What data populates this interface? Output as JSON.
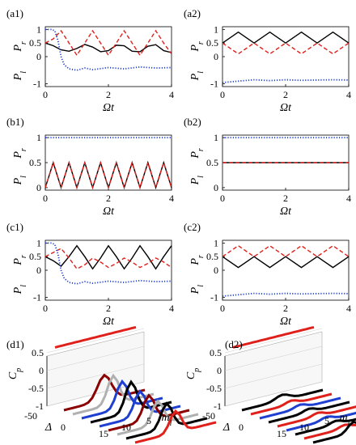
{
  "chart_data": [
    {
      "type": "line",
      "panel_label": "(a1)",
      "xlabel": "Ωt",
      "ylabels": [
        "P_r",
        "P_l"
      ],
      "xlim": [
        0,
        4
      ],
      "ylim": [
        -1.1,
        1.1
      ],
      "xticks": [
        "0",
        "2",
        "4"
      ],
      "yticks": [
        "-1",
        "0",
        "0.5",
        "1"
      ],
      "series": [
        {
          "color": "#000000",
          "style": "solid",
          "x": [
            0,
            0.25,
            0.5,
            0.75,
            1,
            1.25,
            1.5,
            1.75,
            2,
            2.25,
            2.5,
            2.75,
            3,
            3.25,
            3.5,
            3.75,
            4
          ],
          "y": [
            0.5,
            0.4,
            0.25,
            0.2,
            0.3,
            0.45,
            0.35,
            0.18,
            0.22,
            0.42,
            0.4,
            0.2,
            0.18,
            0.38,
            0.44,
            0.22,
            0.15
          ]
        },
        {
          "color": "#e0201b",
          "style": "dashed",
          "x": [
            0,
            0.25,
            0.5,
            0.75,
            1,
            1.25,
            1.5,
            1.75,
            2,
            2.25,
            2.5,
            2.75,
            3,
            3.25,
            3.5,
            3.75,
            4
          ],
          "y": [
            0.5,
            0.65,
            0.95,
            0.5,
            0.05,
            0.5,
            0.95,
            0.5,
            0.05,
            0.5,
            0.95,
            0.5,
            0.05,
            0.5,
            0.95,
            0.5,
            0.1
          ]
        },
        {
          "color": "#1f3fd1",
          "style": "dotted",
          "x": [
            0,
            0.2,
            0.3,
            0.4,
            0.5,
            0.6,
            0.75,
            1,
            1.25,
            1.5,
            2,
            2.5,
            3,
            3.5,
            4
          ],
          "y": [
            1,
            1,
            0.95,
            0.6,
            0,
            -0.3,
            -0.45,
            -0.5,
            -0.42,
            -0.48,
            -0.4,
            -0.45,
            -0.38,
            -0.42,
            -0.4
          ]
        }
      ]
    },
    {
      "type": "line",
      "panel_label": "(a2)",
      "xlabel": "Ωt",
      "ylabels": [
        "P_r",
        "P_l"
      ],
      "xlim": [
        0,
        4
      ],
      "ylim": [
        -1.1,
        1.1
      ],
      "xticks": [
        "0",
        "2",
        "4"
      ],
      "yticks": [
        "-1",
        "0",
        "0.5",
        "1"
      ],
      "series": [
        {
          "color": "#000000",
          "style": "solid",
          "x": [
            0,
            0.5,
            1,
            1.5,
            2,
            2.5,
            3,
            3.5,
            4
          ],
          "y": [
            0.5,
            0.9,
            0.5,
            0.9,
            0.5,
            0.9,
            0.5,
            0.9,
            0.5
          ]
        },
        {
          "color": "#e0201b",
          "style": "dashed",
          "x": [
            0,
            0.5,
            1,
            1.5,
            2,
            2.5,
            3,
            3.5,
            4
          ],
          "y": [
            0.5,
            0.1,
            0.5,
            0.1,
            0.5,
            0.1,
            0.5,
            0.1,
            0.5
          ]
        },
        {
          "color": "#1f3fd1",
          "style": "dotted",
          "x": [
            0,
            0.5,
            1,
            1.5,
            2,
            2.5,
            3,
            3.5,
            4
          ],
          "y": [
            -0.95,
            -0.9,
            -0.85,
            -0.88,
            -0.85,
            -0.87,
            -0.86,
            -0.85,
            -0.86
          ]
        }
      ]
    },
    {
      "type": "line",
      "panel_label": "(b1)",
      "xlabel": "Ωt",
      "ylabels": [
        "P_r",
        "P_l"
      ],
      "xlim": [
        0,
        4
      ],
      "ylim": [
        -0.05,
        1.05
      ],
      "xticks": [
        "0",
        "2",
        "4"
      ],
      "yticks": [
        "0",
        "0.5",
        "1"
      ],
      "series": [
        {
          "color": "#000000",
          "style": "solid",
          "x": [
            0,
            0.25,
            0.5,
            0.75,
            1,
            1.25,
            1.5,
            1.75,
            2,
            2.25,
            2.5,
            2.75,
            3,
            3.25,
            3.5,
            3.75,
            4
          ],
          "y": [
            0,
            0.5,
            0,
            0.5,
            0,
            0.5,
            0,
            0.5,
            0,
            0.5,
            0,
            0.5,
            0,
            0.5,
            0,
            0.5,
            0
          ]
        },
        {
          "color": "#e0201b",
          "style": "dashed",
          "x": [
            0,
            0.25,
            0.5,
            0.75,
            1,
            1.25,
            1.5,
            1.75,
            2,
            2.25,
            2.5,
            2.75,
            3,
            3.25,
            3.5,
            3.75,
            4
          ],
          "y": [
            0,
            0.5,
            0,
            0.5,
            0,
            0.5,
            0,
            0.5,
            0,
            0.5,
            0,
            0.5,
            0,
            0.5,
            0,
            0.5,
            0
          ]
        },
        {
          "color": "#1f3fd1",
          "style": "dotted",
          "x": [
            0,
            4
          ],
          "y": [
            1,
            1
          ]
        }
      ]
    },
    {
      "type": "line",
      "panel_label": "(b2)",
      "xlabel": "Ωt",
      "ylabels": [
        "P_r",
        "P_l"
      ],
      "xlim": [
        0,
        4
      ],
      "ylim": [
        -0.05,
        1.05
      ],
      "xticks": [
        "0",
        "2",
        "4"
      ],
      "yticks": [
        "0",
        "0.5",
        "1"
      ],
      "series": [
        {
          "color": "#000000",
          "style": "solid",
          "x": [
            0,
            4
          ],
          "y": [
            0.5,
            0.5
          ]
        },
        {
          "color": "#e0201b",
          "style": "dashed",
          "x": [
            0,
            4
          ],
          "y": [
            0.5,
            0.5
          ]
        },
        {
          "color": "#1f3fd1",
          "style": "dotted",
          "x": [
            0,
            4
          ],
          "y": [
            1,
            1
          ]
        }
      ]
    },
    {
      "type": "line",
      "panel_label": "(c1)",
      "xlabel": "Ωt",
      "ylabels": [
        "P_r",
        "P_l"
      ],
      "xlim": [
        0,
        4
      ],
      "ylim": [
        -1.1,
        1.1
      ],
      "xticks": [
        "0",
        "2",
        "4"
      ],
      "yticks": [
        "-1",
        "0",
        "0.5",
        "1"
      ],
      "series": [
        {
          "color": "#000000",
          "style": "solid",
          "x": [
            0,
            0.25,
            0.5,
            0.75,
            1,
            1.25,
            1.5,
            1.75,
            2,
            2.25,
            2.5,
            2.75,
            3,
            3.25,
            3.5,
            3.75,
            4
          ],
          "y": [
            0.5,
            0.35,
            0.15,
            0.5,
            0.9,
            0.5,
            0.05,
            0.45,
            0.9,
            0.5,
            0.05,
            0.45,
            0.9,
            0.5,
            0.05,
            0.5,
            0.9
          ]
        },
        {
          "color": "#e0201b",
          "style": "dashed",
          "x": [
            0,
            0.25,
            0.5,
            0.75,
            1,
            1.25,
            1.5,
            1.75,
            2,
            2.25,
            2.5,
            2.75,
            3,
            3.25,
            3.5,
            3.75,
            4
          ],
          "y": [
            0.5,
            0.65,
            0.8,
            0.45,
            0.05,
            0.2,
            0.45,
            0.3,
            0.1,
            0.25,
            0.45,
            0.3,
            0.1,
            0.25,
            0.45,
            0.3,
            0.1
          ]
        },
        {
          "color": "#1f3fd1",
          "style": "dotted",
          "x": [
            0,
            0.2,
            0.3,
            0.4,
            0.5,
            0.6,
            0.75,
            1,
            1.25,
            1.5,
            2,
            2.5,
            3,
            3.5,
            4
          ],
          "y": [
            1,
            1,
            0.95,
            0.6,
            0,
            -0.3,
            -0.45,
            -0.5,
            -0.42,
            -0.48,
            -0.4,
            -0.45,
            -0.38,
            -0.42,
            -0.4
          ]
        }
      ]
    },
    {
      "type": "line",
      "panel_label": "(c2)",
      "xlabel": "Ωt",
      "ylabels": [
        "P_r",
        "P_l"
      ],
      "xlim": [
        0,
        4
      ],
      "ylim": [
        -1.1,
        1.1
      ],
      "xticks": [
        "0",
        "2",
        "4"
      ],
      "yticks": [
        "-1",
        "0",
        "0.5",
        "1"
      ],
      "series": [
        {
          "color": "#000000",
          "style": "solid",
          "x": [
            0,
            0.5,
            1,
            1.5,
            2,
            2.5,
            3,
            3.5,
            4
          ],
          "y": [
            0.5,
            0.1,
            0.5,
            0.1,
            0.5,
            0.1,
            0.5,
            0.1,
            0.5
          ]
        },
        {
          "color": "#e0201b",
          "style": "dashed",
          "x": [
            0,
            0.5,
            1,
            1.5,
            2,
            2.5,
            3,
            3.5,
            4
          ],
          "y": [
            0.5,
            0.9,
            0.5,
            0.9,
            0.5,
            0.9,
            0.5,
            0.9,
            0.5
          ]
        },
        {
          "color": "#1f3fd1",
          "style": "dotted",
          "x": [
            0,
            0.5,
            1,
            1.5,
            2,
            2.5,
            3,
            3.5,
            4
          ],
          "y": [
            -0.95,
            -0.9,
            -0.85,
            -0.88,
            -0.85,
            -0.87,
            -0.86,
            -0.85,
            -0.86
          ]
        }
      ]
    },
    {
      "type": "line3d",
      "panel_label": "(d1)",
      "zlabel": "C_p",
      "xlabel": "Δ",
      "ylabel": "m_l",
      "zticks": [
        "-1",
        "-0.5",
        "0",
        "0.5"
      ],
      "xticks": [
        "-50",
        "0"
      ],
      "yticks": [
        "15",
        "10",
        "5"
      ],
      "series": [
        {
          "color": "#e0201b",
          "m_l": 0,
          "peak": 0.65,
          "width": 60
        },
        {
          "color": "#8b0000",
          "m_l": 1,
          "peak": -0.3,
          "width": 12
        },
        {
          "color": "#b0b0b0",
          "m_l": 2,
          "peak": -0.2,
          "width": 10
        },
        {
          "color": "#1f3fd1",
          "m_l": 3,
          "peak": -0.25,
          "width": 10
        },
        {
          "color": "#000000",
          "m_l": 4,
          "peak": -0.15,
          "width": 10
        },
        {
          "color": "#1f3fd1",
          "m_l": 5,
          "peak": -0.3,
          "width": 10
        },
        {
          "color": "#8b0000",
          "m_l": 6,
          "peak": -0.3,
          "width": 10
        },
        {
          "color": "#b0b0b0",
          "m_l": 7,
          "peak": -0.35,
          "width": 10
        },
        {
          "color": "#000000",
          "m_l": 8,
          "peak": -0.3,
          "width": 10
        },
        {
          "color": "#e0201b",
          "m_l": 9,
          "peak": -0.4,
          "width": 10
        }
      ]
    },
    {
      "type": "line3d",
      "panel_label": "(d2)",
      "zlabel": "C_p",
      "xlabel": "Δ",
      "ylabel": "m_l",
      "zticks": [
        "-1",
        "-0.5",
        "0",
        "0.5"
      ],
      "xticks": [
        "-50",
        "0"
      ],
      "yticks": [
        "15",
        "10",
        "5"
      ],
      "series": [
        {
          "color": "#e0201b",
          "m_l": 0,
          "peak": 0.65,
          "width": 60
        },
        {
          "color": "#000000",
          "m_l": 1,
          "peak": -0.85,
          "width": 12
        },
        {
          "color": "#e0201b",
          "m_l": 2,
          "peak": -0.9,
          "width": 10
        },
        {
          "color": "#1f3fd1",
          "m_l": 3,
          "peak": -0.9,
          "width": 10
        },
        {
          "color": "#000000",
          "m_l": 4,
          "peak": -0.9,
          "width": 10
        },
        {
          "color": "#e0201b",
          "m_l": 5,
          "peak": -0.9,
          "width": 10
        },
        {
          "color": "#1f3fd1",
          "m_l": 6,
          "peak": -0.9,
          "width": 10
        },
        {
          "color": "#000000",
          "m_l": 7,
          "peak": -0.9,
          "width": 10
        },
        {
          "color": "#e0201b",
          "m_l": 8,
          "peak": -0.9,
          "width": 10
        },
        {
          "color": "#000000",
          "m_l": 9,
          "peak": -0.7,
          "width": 10
        }
      ]
    }
  ]
}
